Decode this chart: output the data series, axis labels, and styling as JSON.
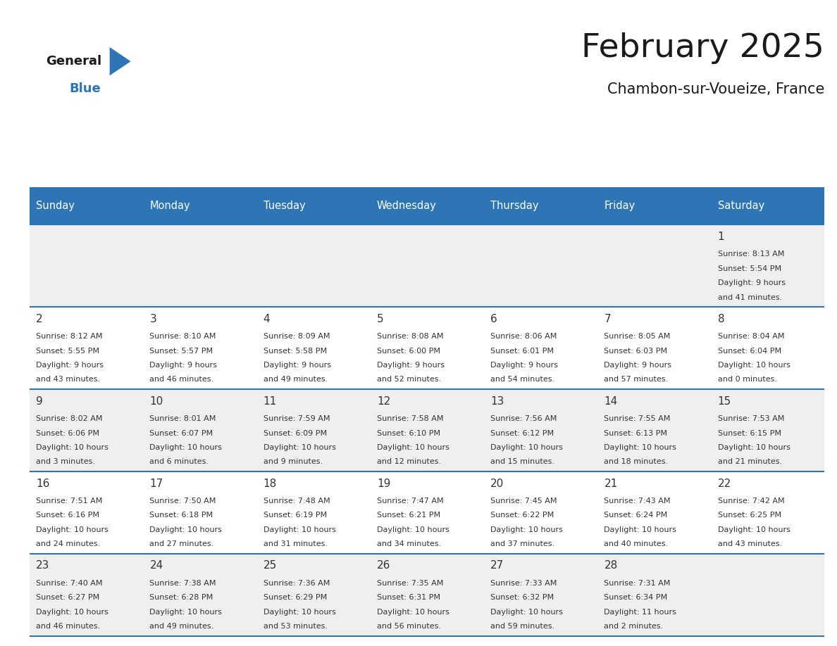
{
  "title": "February 2025",
  "subtitle": "Chambon-sur-Voueize, France",
  "header_color": "#2E75B6",
  "header_text_color": "#FFFFFF",
  "day_names": [
    "Sunday",
    "Monday",
    "Tuesday",
    "Wednesday",
    "Thursday",
    "Friday",
    "Saturday"
  ],
  "background_color": "#FFFFFF",
  "row_bg": [
    "#EFEFEF",
    "#FFFFFF",
    "#EFEFEF",
    "#FFFFFF",
    "#EFEFEF"
  ],
  "row_line_color": "#2E75B6",
  "date_color": "#333333",
  "info_color": "#333333",
  "logo_general_color": "#1a1a1a",
  "logo_blue_color": "#2E75B6",
  "days": [
    {
      "day": 1,
      "col": 6,
      "row": 0,
      "sunrise": "8:13 AM",
      "sunset": "5:54 PM",
      "daylight": "9 hours and 41 minutes."
    },
    {
      "day": 2,
      "col": 0,
      "row": 1,
      "sunrise": "8:12 AM",
      "sunset": "5:55 PM",
      "daylight": "9 hours and 43 minutes."
    },
    {
      "day": 3,
      "col": 1,
      "row": 1,
      "sunrise": "8:10 AM",
      "sunset": "5:57 PM",
      "daylight": "9 hours and 46 minutes."
    },
    {
      "day": 4,
      "col": 2,
      "row": 1,
      "sunrise": "8:09 AM",
      "sunset": "5:58 PM",
      "daylight": "9 hours and 49 minutes."
    },
    {
      "day": 5,
      "col": 3,
      "row": 1,
      "sunrise": "8:08 AM",
      "sunset": "6:00 PM",
      "daylight": "9 hours and 52 minutes."
    },
    {
      "day": 6,
      "col": 4,
      "row": 1,
      "sunrise": "8:06 AM",
      "sunset": "6:01 PM",
      "daylight": "9 hours and 54 minutes."
    },
    {
      "day": 7,
      "col": 5,
      "row": 1,
      "sunrise": "8:05 AM",
      "sunset": "6:03 PM",
      "daylight": "9 hours and 57 minutes."
    },
    {
      "day": 8,
      "col": 6,
      "row": 1,
      "sunrise": "8:04 AM",
      "sunset": "6:04 PM",
      "daylight": "10 hours and 0 minutes."
    },
    {
      "day": 9,
      "col": 0,
      "row": 2,
      "sunrise": "8:02 AM",
      "sunset": "6:06 PM",
      "daylight": "10 hours and 3 minutes."
    },
    {
      "day": 10,
      "col": 1,
      "row": 2,
      "sunrise": "8:01 AM",
      "sunset": "6:07 PM",
      "daylight": "10 hours and 6 minutes."
    },
    {
      "day": 11,
      "col": 2,
      "row": 2,
      "sunrise": "7:59 AM",
      "sunset": "6:09 PM",
      "daylight": "10 hours and 9 minutes."
    },
    {
      "day": 12,
      "col": 3,
      "row": 2,
      "sunrise": "7:58 AM",
      "sunset": "6:10 PM",
      "daylight": "10 hours and 12 minutes."
    },
    {
      "day": 13,
      "col": 4,
      "row": 2,
      "sunrise": "7:56 AM",
      "sunset": "6:12 PM",
      "daylight": "10 hours and 15 minutes."
    },
    {
      "day": 14,
      "col": 5,
      "row": 2,
      "sunrise": "7:55 AM",
      "sunset": "6:13 PM",
      "daylight": "10 hours and 18 minutes."
    },
    {
      "day": 15,
      "col": 6,
      "row": 2,
      "sunrise": "7:53 AM",
      "sunset": "6:15 PM",
      "daylight": "10 hours and 21 minutes."
    },
    {
      "day": 16,
      "col": 0,
      "row": 3,
      "sunrise": "7:51 AM",
      "sunset": "6:16 PM",
      "daylight": "10 hours and 24 minutes."
    },
    {
      "day": 17,
      "col": 1,
      "row": 3,
      "sunrise": "7:50 AM",
      "sunset": "6:18 PM",
      "daylight": "10 hours and 27 minutes."
    },
    {
      "day": 18,
      "col": 2,
      "row": 3,
      "sunrise": "7:48 AM",
      "sunset": "6:19 PM",
      "daylight": "10 hours and 31 minutes."
    },
    {
      "day": 19,
      "col": 3,
      "row": 3,
      "sunrise": "7:47 AM",
      "sunset": "6:21 PM",
      "daylight": "10 hours and 34 minutes."
    },
    {
      "day": 20,
      "col": 4,
      "row": 3,
      "sunrise": "7:45 AM",
      "sunset": "6:22 PM",
      "daylight": "10 hours and 37 minutes."
    },
    {
      "day": 21,
      "col": 5,
      "row": 3,
      "sunrise": "7:43 AM",
      "sunset": "6:24 PM",
      "daylight": "10 hours and 40 minutes."
    },
    {
      "day": 22,
      "col": 6,
      "row": 3,
      "sunrise": "7:42 AM",
      "sunset": "6:25 PM",
      "daylight": "10 hours and 43 minutes."
    },
    {
      "day": 23,
      "col": 0,
      "row": 4,
      "sunrise": "7:40 AM",
      "sunset": "6:27 PM",
      "daylight": "10 hours and 46 minutes."
    },
    {
      "day": 24,
      "col": 1,
      "row": 4,
      "sunrise": "7:38 AM",
      "sunset": "6:28 PM",
      "daylight": "10 hours and 49 minutes."
    },
    {
      "day": 25,
      "col": 2,
      "row": 4,
      "sunrise": "7:36 AM",
      "sunset": "6:29 PM",
      "daylight": "10 hours and 53 minutes."
    },
    {
      "day": 26,
      "col": 3,
      "row": 4,
      "sunrise": "7:35 AM",
      "sunset": "6:31 PM",
      "daylight": "10 hours and 56 minutes."
    },
    {
      "day": 27,
      "col": 4,
      "row": 4,
      "sunrise": "7:33 AM",
      "sunset": "6:32 PM",
      "daylight": "10 hours and 59 minutes."
    },
    {
      "day": 28,
      "col": 5,
      "row": 4,
      "sunrise": "7:31 AM",
      "sunset": "6:34 PM",
      "daylight": "11 hours and 2 minutes."
    }
  ]
}
